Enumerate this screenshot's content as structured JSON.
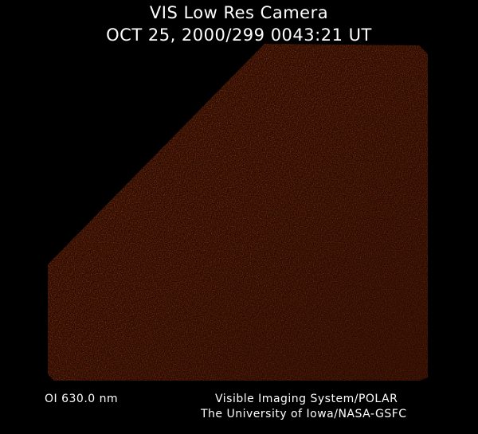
{
  "header": {
    "title": "VIS Low Res Camera",
    "datetime": "OCT 25, 2000/299 0043:21 UT"
  },
  "footer": {
    "wavelength": "OI  630.0 nm",
    "instrument": "Visible Imaging System/POLAR",
    "institution": "The University of Iowa/NASA-GSFC"
  },
  "image": {
    "colors": {
      "base": "#8a3512",
      "bright": "#b5501e",
      "dark": "#2a0c03"
    }
  }
}
